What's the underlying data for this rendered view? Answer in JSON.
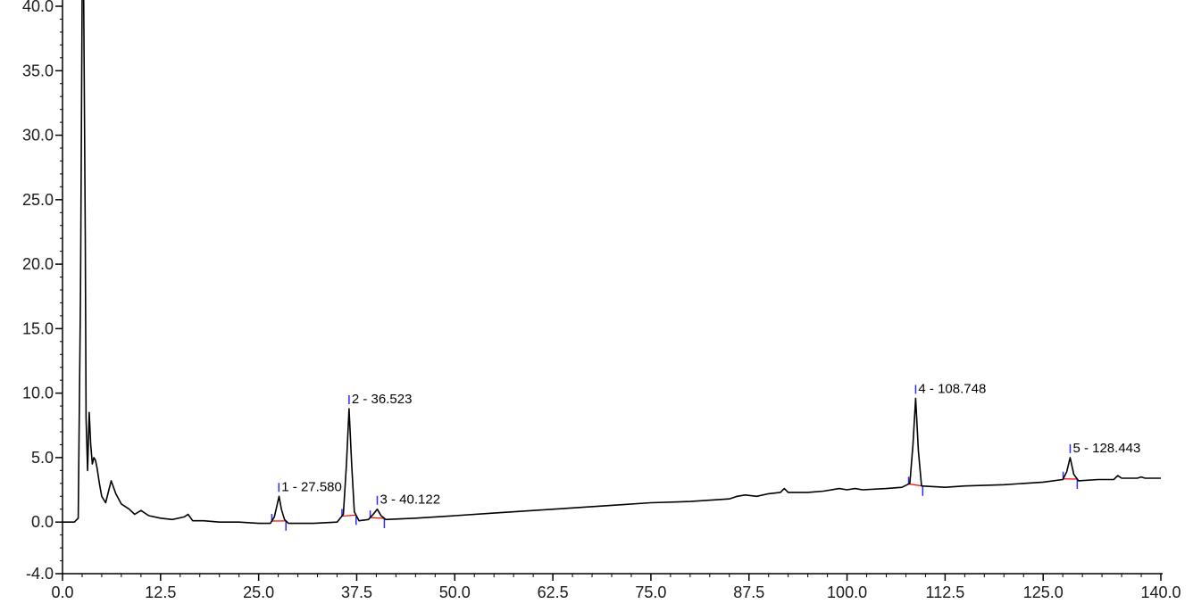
{
  "header_text": "",
  "chart_data": {
    "type": "line",
    "title": "",
    "xlabel": "",
    "ylabel": "",
    "xlim": [
      0.0,
      140.0
    ],
    "ylim": [
      -4.0,
      40.0
    ],
    "grid": false,
    "x_ticks": [
      "0.0",
      "12.5",
      "25.0",
      "37.5",
      "50.0",
      "62.5",
      "75.0",
      "87.5",
      "100.0",
      "112.5",
      "125.0",
      "140.0"
    ],
    "y_ticks": [
      "-4.0",
      "0.0",
      "5.0",
      "10.0",
      "15.0",
      "20.0",
      "25.0",
      "30.0",
      "35.0",
      "40.0"
    ],
    "series": [
      {
        "color": "#000000",
        "x": [
          0.0,
          1.5,
          2.0,
          2.3,
          2.5,
          2.7,
          2.9,
          3.0,
          3.2,
          3.4,
          3.6,
          3.8,
          4.0,
          4.2,
          4.4,
          4.7,
          5.0,
          5.5,
          6.2,
          6.8,
          7.5,
          8.5,
          9.2,
          10.0,
          11.0,
          12.5,
          14.0,
          15.5,
          16.0,
          16.6,
          18.0,
          20.0,
          22.5,
          25.0,
          26.5,
          27.0,
          27.3,
          27.6,
          27.9,
          28.3,
          28.8,
          30.0,
          32.0,
          35.0,
          35.8,
          36.2,
          36.52,
          36.85,
          37.2,
          37.8,
          39.0,
          39.6,
          40.12,
          40.6,
          41.2,
          45.0,
          50.0,
          55.0,
          60.0,
          65.0,
          70.0,
          75.0,
          80.0,
          85.0,
          86.0,
          87.0,
          88.5,
          90.0,
          91.5,
          92.0,
          92.5,
          95.0,
          97.0,
          99.0,
          100.0,
          101.0,
          102.0,
          105.0,
          107.0,
          108.0,
          108.4,
          108.75,
          109.1,
          109.5,
          112.5,
          115.0,
          120.0,
          125.0,
          127.5,
          128.0,
          128.44,
          128.9,
          129.5,
          132.0,
          134.0,
          134.5,
          135.0,
          137.0,
          137.5,
          138.0,
          140.0
        ],
        "y": [
          0.0,
          0.0,
          0.3,
          18.0,
          41.0,
          41.0,
          22.0,
          8.0,
          4.0,
          8.5,
          6.0,
          4.5,
          5.0,
          4.8,
          4.2,
          3.0,
          2.0,
          1.5,
          3.2,
          2.2,
          1.4,
          1.0,
          0.6,
          0.9,
          0.5,
          0.3,
          0.2,
          0.4,
          0.6,
          0.1,
          0.1,
          0.0,
          0.0,
          -0.1,
          -0.1,
          0.4,
          1.2,
          2.0,
          1.0,
          0.2,
          -0.1,
          -0.1,
          -0.1,
          0.0,
          0.6,
          4.5,
          8.8,
          4.5,
          0.8,
          0.1,
          0.2,
          0.6,
          1.0,
          0.5,
          0.2,
          0.3,
          0.5,
          0.7,
          0.9,
          1.1,
          1.3,
          1.5,
          1.6,
          1.8,
          2.0,
          2.1,
          2.0,
          2.2,
          2.3,
          2.6,
          2.3,
          2.3,
          2.4,
          2.6,
          2.5,
          2.6,
          2.5,
          2.6,
          2.7,
          3.0,
          6.0,
          9.6,
          5.5,
          2.8,
          2.7,
          2.8,
          2.9,
          3.1,
          3.3,
          3.9,
          5.0,
          3.7,
          3.2,
          3.3,
          3.3,
          3.6,
          3.4,
          3.4,
          3.5,
          3.4,
          3.4
        ]
      }
    ],
    "peaks": [
      {
        "label": "1 - 27.580",
        "x": 27.58,
        "y": 2.0
      },
      {
        "label": "2 - 36.523",
        "x": 36.523,
        "y": 8.8
      },
      {
        "label": "3 - 40.122",
        "x": 40.122,
        "y": 1.0
      },
      {
        "label": "4 - 108.748",
        "x": 108.748,
        "y": 9.6
      },
      {
        "label": "5 - 128.443",
        "x": 128.443,
        "y": 5.0
      }
    ],
    "colors": {
      "trace": "#000000",
      "peak_marker": "#2a2aff",
      "baseline": "#ff0000",
      "axis": "#000000"
    }
  }
}
